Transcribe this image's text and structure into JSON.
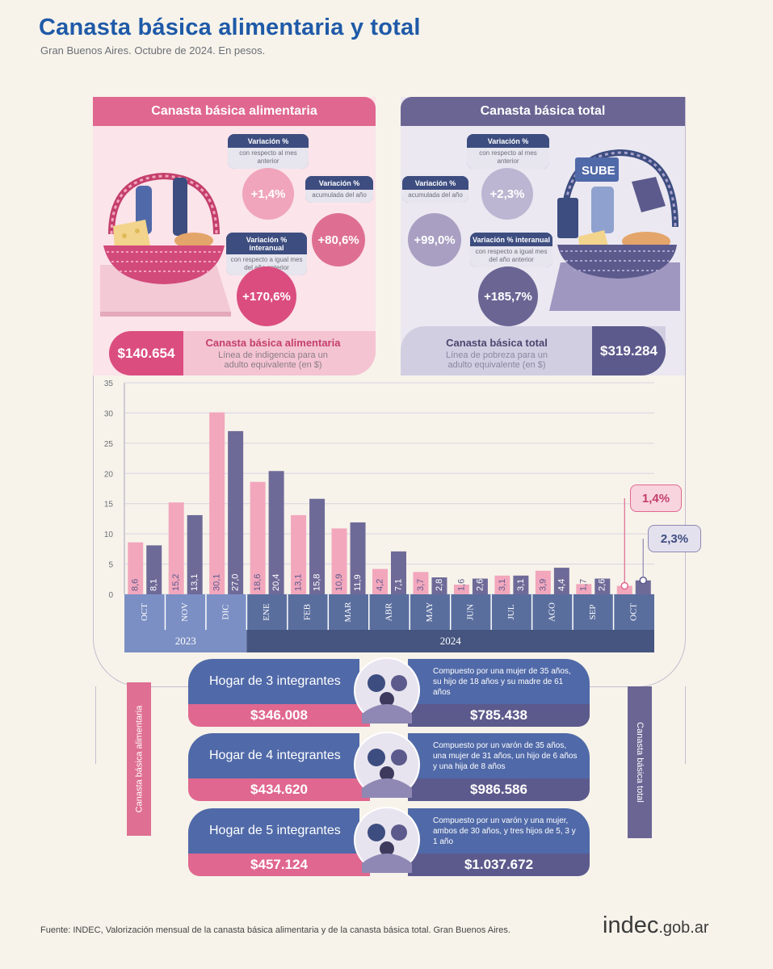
{
  "header": {
    "title": "Canasta básica alimentaria y total",
    "subtitle": "Gran Buenos Aires. Octubre de 2024. En pesos."
  },
  "colors": {
    "pink": "#e0678f",
    "pink_light": "#f2b8c8",
    "purple": "#5c5a8c",
    "purple_light": "#b0a8c8",
    "blue": "#5069a8",
    "navy": "#3d4d80",
    "title_blue": "#1f5aa8"
  },
  "cba": {
    "heading": "Canasta básica alimentaria",
    "monthly": {
      "label": "Variación %",
      "sub": "con respecto al mes anterior",
      "value": "+1,4%"
    },
    "accum": {
      "label": "Variación %",
      "sub": "acumulada del año",
      "value": "+80,6%"
    },
    "yoy": {
      "label": "Variación % interanual",
      "sub": "con respecto a igual mes del año anterior",
      "value": "+170,6%"
    },
    "price": "$140.654",
    "price_title": "Canasta básica alimentaria",
    "price_desc": "Línea de indigencia para un adulto equivalente (en $)"
  },
  "cbt": {
    "heading": "Canasta básica total",
    "monthly": {
      "label": "Variación %",
      "sub": "con respecto al mes anterior",
      "value": "+2,3%"
    },
    "accum": {
      "label": "Variación %",
      "sub": "acumulada del año",
      "value": "+99,0%"
    },
    "yoy": {
      "label": "Variación % interanual",
      "sub": "con respecto a igual mes del año anterior",
      "value": "+185,7%"
    },
    "price": "$319.284",
    "price_title": "Canasta básica total",
    "price_desc": "Línea de pobreza para un adulto equivalente (en $)",
    "basket_card": "SUBE"
  },
  "chart_data": {
    "type": "bar",
    "categories": [
      "OCT",
      "NOV",
      "DIC",
      "ENE",
      "FEB",
      "MAR",
      "ABR",
      "MAY",
      "JUN",
      "JUL",
      "AGO",
      "SEP",
      "OCT"
    ],
    "series": [
      {
        "name": "Canasta básica alimentaria",
        "values": [
          8.6,
          15.2,
          30.1,
          18.6,
          13.1,
          10.9,
          4.2,
          3.7,
          1.6,
          3.1,
          3.9,
          1.7,
          1.4
        ],
        "labels": [
          "8,6",
          "15,2",
          "30,1",
          "18,6",
          "13,1",
          "10,9",
          "4,2",
          "3,7",
          "1,6",
          "3,1",
          "3,9",
          "1,7",
          ""
        ]
      },
      {
        "name": "Canasta básica total",
        "values": [
          8.1,
          13.1,
          27.0,
          20.4,
          15.8,
          11.9,
          7.1,
          2.8,
          2.6,
          3.1,
          4.4,
          2.6,
          2.3
        ],
        "labels": [
          "8,1",
          "13,1",
          "27,0",
          "20,4",
          "15,8",
          "11,9",
          "7,1",
          "2,8",
          "2,6",
          "3,1",
          "4,4",
          "2,6",
          ""
        ]
      }
    ],
    "years": [
      "2023",
      "2024"
    ],
    "yticks": [
      "0",
      "5",
      "10",
      "15",
      "20",
      "25",
      "30",
      "35"
    ],
    "ylim": [
      0,
      35
    ],
    "callouts": {
      "cba": "1,4%",
      "cbt": "2,3%"
    }
  },
  "sidebar": {
    "left": "Canasta básica alimentaria",
    "right": "Canasta básica total"
  },
  "households": [
    {
      "title": "Hogar de 3 integrantes",
      "desc": "Compuesto por una mujer de 35 años, su hijo de 18 años y su madre de 61 años",
      "cba": "$346.008",
      "cbt": "$785.438"
    },
    {
      "title": "Hogar de 4 integrantes",
      "desc": "Compuesto por un varón de 35 años, una mujer de 31 años, un hijo de 6 años y una hija de 8 años",
      "cba": "$434.620",
      "cbt": "$986.586"
    },
    {
      "title": "Hogar de 5 integrantes",
      "desc": "Compuesto por un varón y una mujer, ambos de 30 años, y tres hijos de 5, 3 y 1 año",
      "cba": "$457.124",
      "cbt": "$1.037.672"
    }
  ],
  "footer": {
    "source": "Fuente: INDEC, Valorización mensual de la canasta básica alimentaria y de la canasta básica total. Gran Buenos Aires.",
    "logo_main": "indec",
    "logo_domain": ".gob.ar"
  }
}
